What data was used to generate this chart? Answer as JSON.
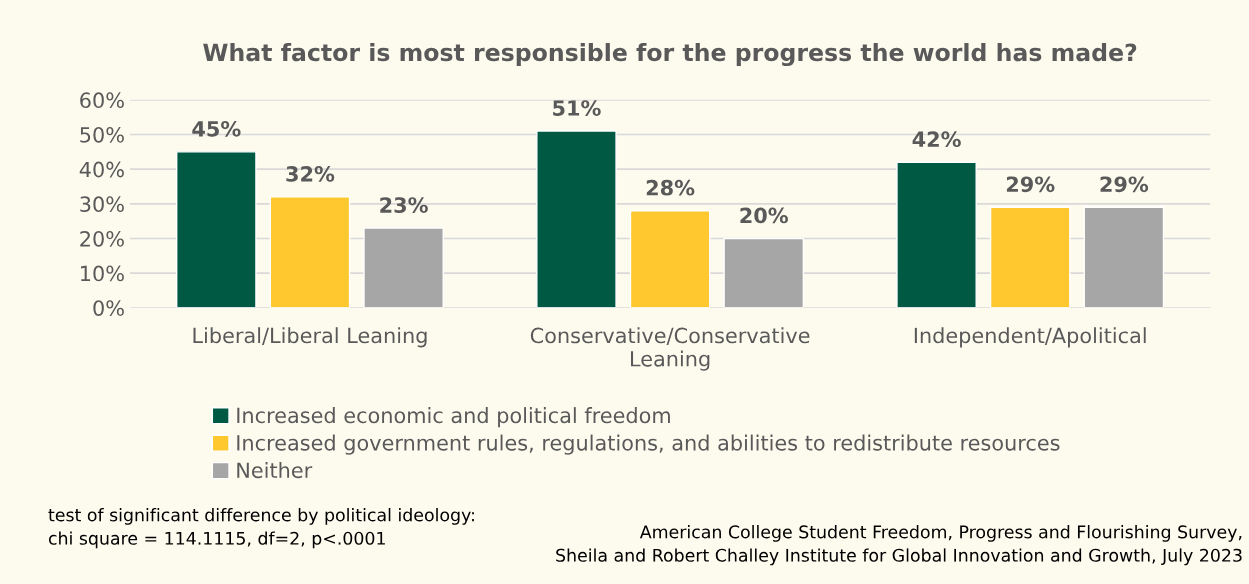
{
  "chart_data": {
    "type": "bar",
    "title": "What factor is most responsible for the progress the world has made?",
    "categories": [
      "Liberal/Liberal Leaning",
      "Conservative/Conservative\nLeaning",
      "Independent/Apolitical"
    ],
    "series": [
      {
        "name": "Increased economic and political freedom",
        "color": "#005a43",
        "values": [
          45,
          51,
          42
        ]
      },
      {
        "name": "Increased government rules, regulations, and abilities to redistribute resources",
        "color": "#ffc82e",
        "values": [
          32,
          28,
          29
        ]
      },
      {
        "name": "Neither",
        "color": "#a6a6a6",
        "values": [
          23,
          20,
          29
        ]
      }
    ],
    "ylim": [
      0,
      60
    ],
    "yticks": [
      {
        "value": 0,
        "label": "0%"
      },
      {
        "value": 10,
        "label": "10%"
      },
      {
        "value": 20,
        "label": "20%"
      },
      {
        "value": 30,
        "label": "30%"
      },
      {
        "value": 40,
        "label": "40%"
      },
      {
        "value": 50,
        "label": "50%"
      },
      {
        "value": 60,
        "label": "60%"
      }
    ],
    "value_labels": [
      [
        "45%",
        "51%",
        "42%"
      ],
      [
        "32%",
        "28%",
        "29%"
      ],
      [
        "23%",
        "20%",
        "29%"
      ]
    ],
    "grid": "y",
    "legend": "bottom",
    "annotations": [
      "test of significant difference by political ideology:\nchi square = 114.1115, df=2, p<.0001",
      "American College Student Freedom, Progress and Flourishing Survey,\nSheila and Robert Challey Institute for Global Innovation and Growth, July 2023"
    ]
  }
}
